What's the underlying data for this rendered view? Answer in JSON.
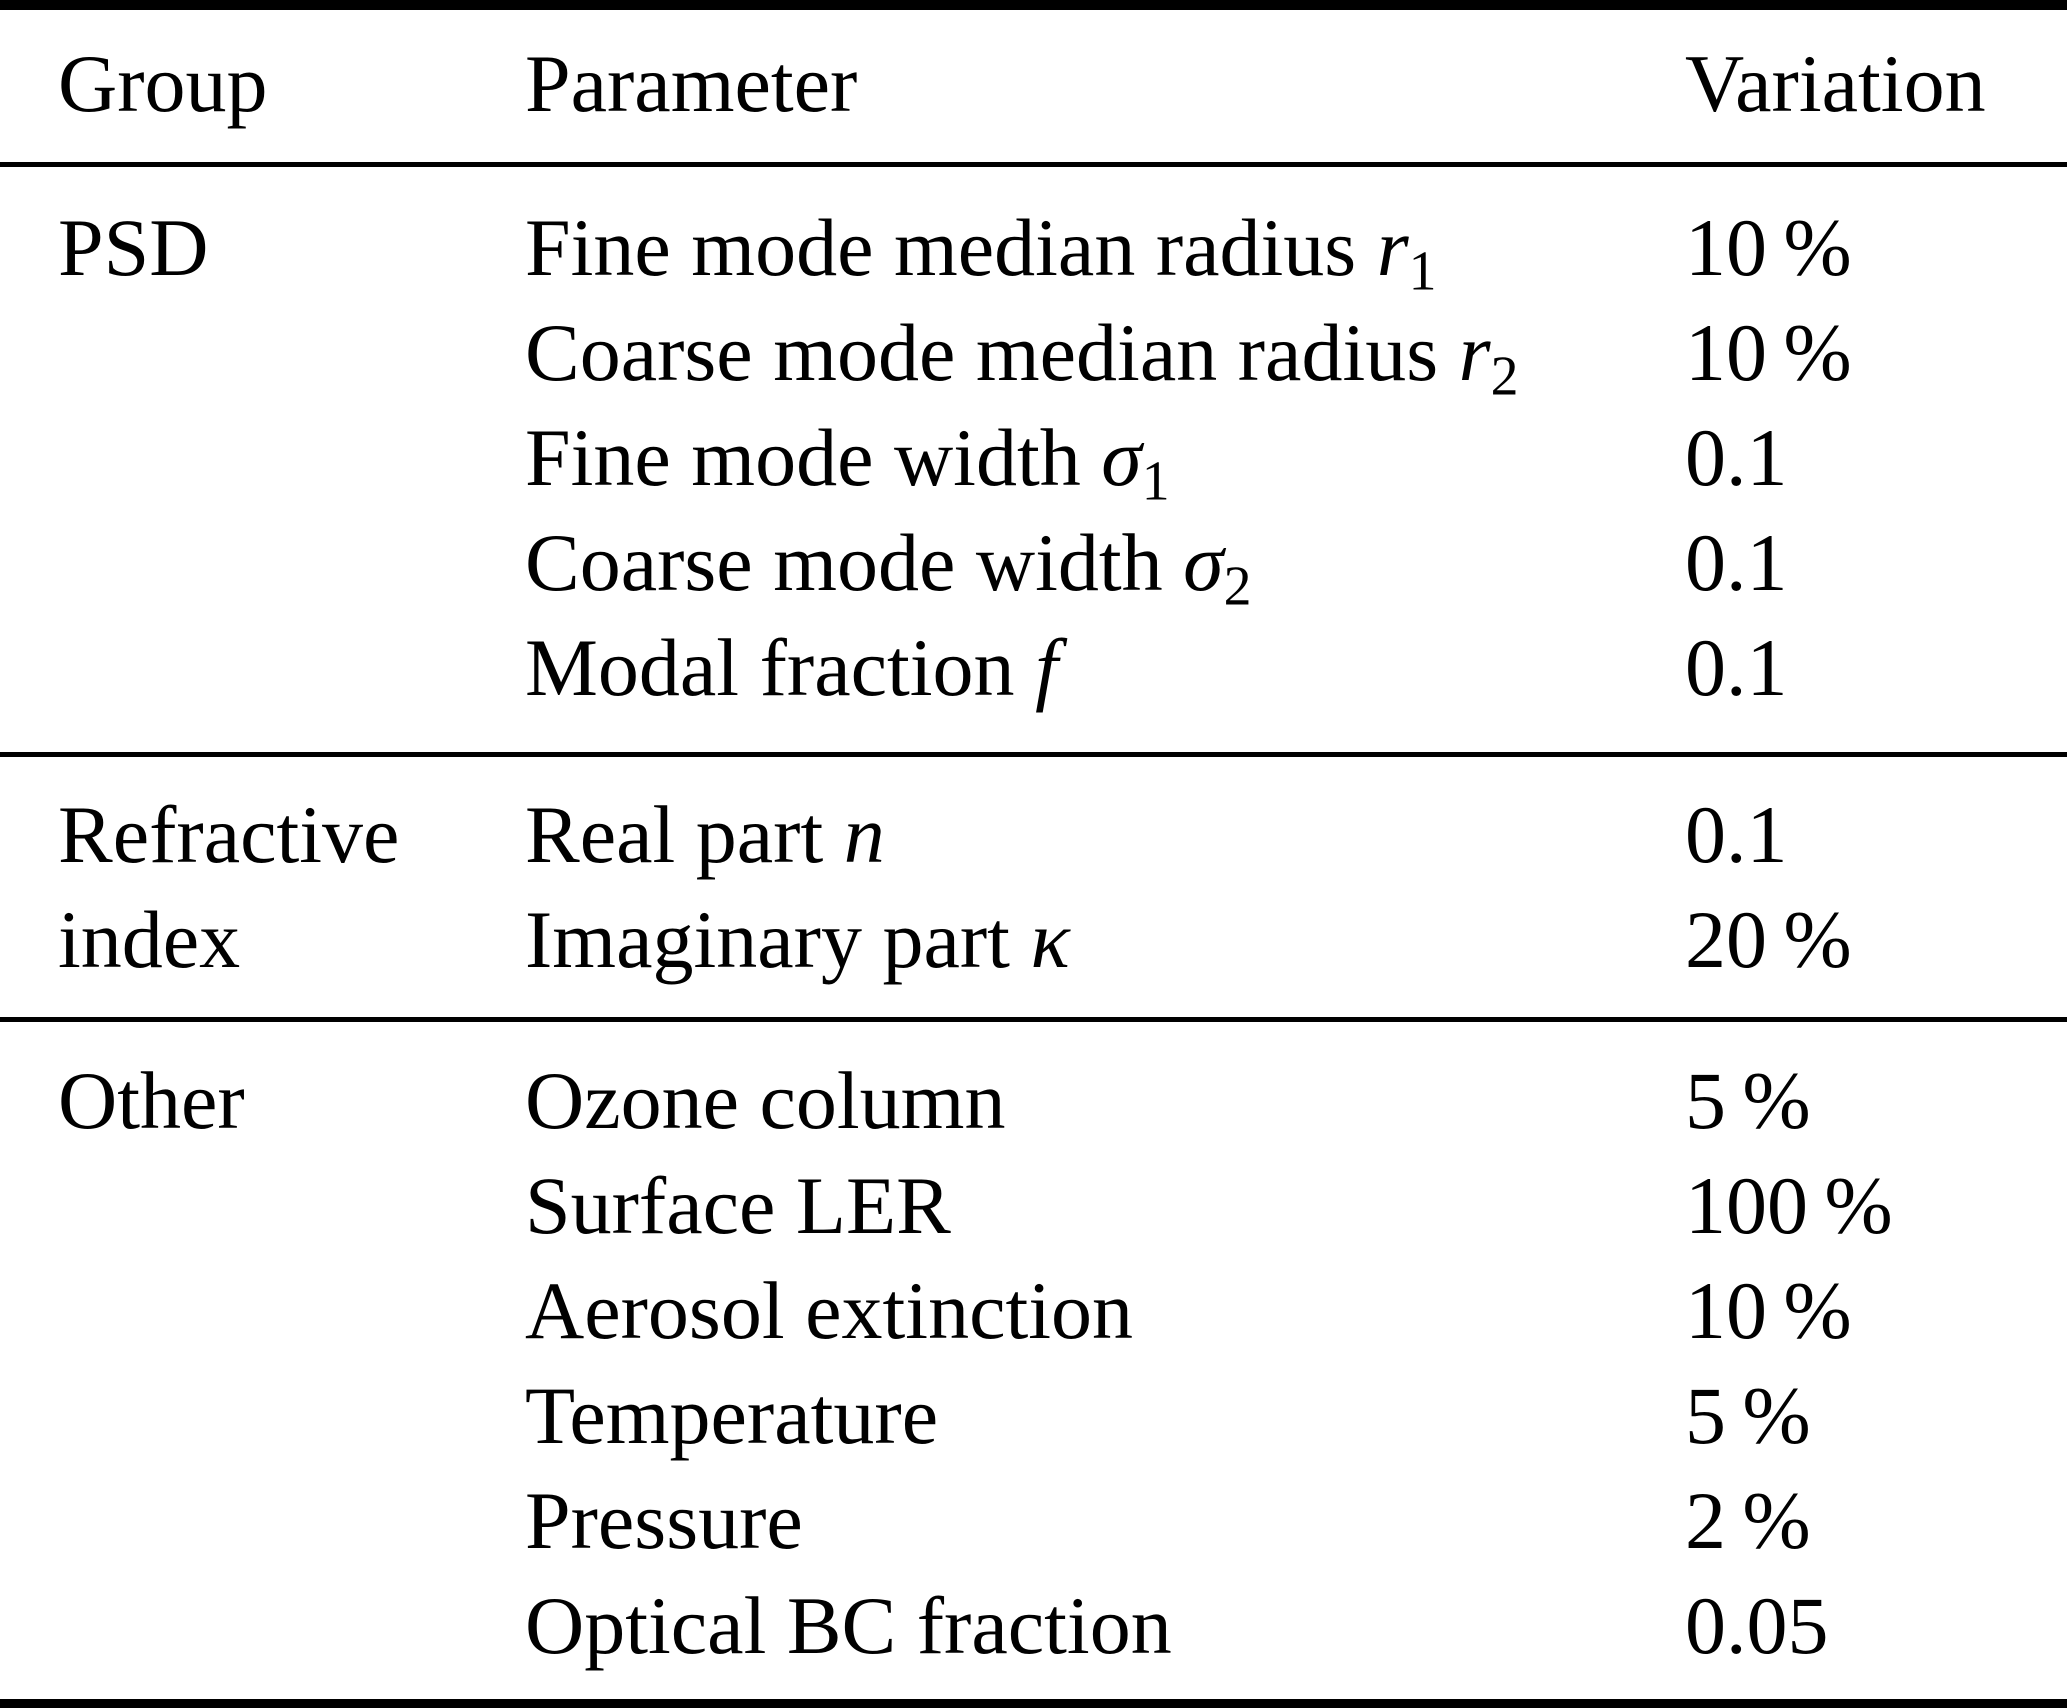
{
  "table": {
    "columns": [
      "Group",
      "Parameter",
      "Variation"
    ],
    "sections": [
      {
        "group": [
          "PSD"
        ],
        "rows": [
          {
            "parameter": [
              [
                "plain",
                "Fine mode median radius "
              ],
              [
                "var",
                "r"
              ],
              [
                "sub",
                "1"
              ]
            ],
            "variation": "10 %"
          },
          {
            "parameter": [
              [
                "plain",
                "Coarse mode median radius "
              ],
              [
                "var",
                "r"
              ],
              [
                "sub",
                "2"
              ]
            ],
            "variation": "10 %"
          },
          {
            "parameter": [
              [
                "plain",
                "Fine mode width "
              ],
              [
                "var",
                "σ"
              ],
              [
                "sub",
                "1"
              ]
            ],
            "variation": "0.1"
          },
          {
            "parameter": [
              [
                "plain",
                "Coarse mode width "
              ],
              [
                "var",
                "σ"
              ],
              [
                "sub",
                "2"
              ]
            ],
            "variation": "0.1"
          },
          {
            "parameter": [
              [
                "plain",
                "Modal fraction "
              ],
              [
                "var",
                "f"
              ]
            ],
            "variation": "0.1"
          }
        ]
      },
      {
        "group": [
          "Refractive",
          "index"
        ],
        "rows": [
          {
            "parameter": [
              [
                "plain",
                "Real part "
              ],
              [
                "var",
                "n"
              ]
            ],
            "variation": "0.1"
          },
          {
            "parameter": [
              [
                "plain",
                "Imaginary part "
              ],
              [
                "var",
                "κ"
              ]
            ],
            "variation": "20 %"
          }
        ]
      },
      {
        "group": [
          "Other"
        ],
        "rows": [
          {
            "parameter": [
              [
                "plain",
                "Ozone column"
              ]
            ],
            "variation": "5 %"
          },
          {
            "parameter": [
              [
                "plain",
                "Surface LER"
              ]
            ],
            "variation": "100 %"
          },
          {
            "parameter": [
              [
                "plain",
                "Aerosol extinction"
              ]
            ],
            "variation": "10 %"
          },
          {
            "parameter": [
              [
                "plain",
                "Temperature"
              ]
            ],
            "variation": "5 %"
          },
          {
            "parameter": [
              [
                "plain",
                "Pressure"
              ]
            ],
            "variation": "2 %"
          },
          {
            "parameter": [
              [
                "plain",
                "Optical BC fraction"
              ]
            ],
            "variation": "0.05"
          }
        ]
      }
    ]
  }
}
